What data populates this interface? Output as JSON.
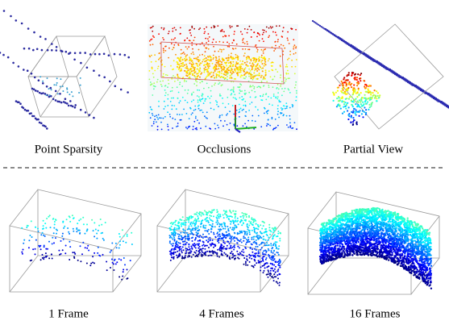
{
  "top_row": {
    "captions": [
      "Point Sparsity",
      "Occlusions",
      "Partial View"
    ]
  },
  "bottom_row": {
    "captions": [
      "1 Frame",
      "4 Frames",
      "16 Frames"
    ]
  }
}
